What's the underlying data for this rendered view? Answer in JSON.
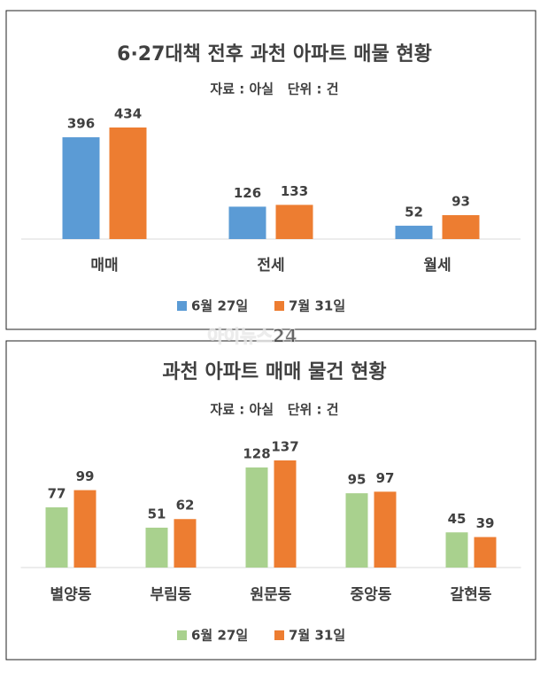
{
  "chart_data": [
    {
      "type": "bar",
      "title": "6·27대책 전후 과천 아파트 매물 현황",
      "subtitle": "자료 : 아실   단위 : 건",
      "categories": [
        "매매",
        "전세",
        "월세"
      ],
      "series": [
        {
          "name": "6월 27일",
          "color": "#5b9bd5",
          "values": [
            396,
            126,
            52
          ]
        },
        {
          "name": "7월 31일",
          "color": "#ed7d31",
          "values": [
            434,
            133,
            93
          ]
        }
      ]
    },
    {
      "type": "bar",
      "title": "과천 아파트 매매 물건 현황",
      "subtitle": "자료 : 아실   단위 : 건",
      "categories": [
        "별양동",
        "부림동",
        "원문동",
        "중앙동",
        "갈현동"
      ],
      "series": [
        {
          "name": "6월 27일",
          "color": "#a9d18e",
          "values": [
            77,
            51,
            128,
            95,
            45
          ]
        },
        {
          "name": "7월 31일",
          "color": "#ed7d31",
          "values": [
            99,
            62,
            137,
            97,
            39
          ]
        }
      ]
    }
  ],
  "watermark": "아이뉴스24"
}
